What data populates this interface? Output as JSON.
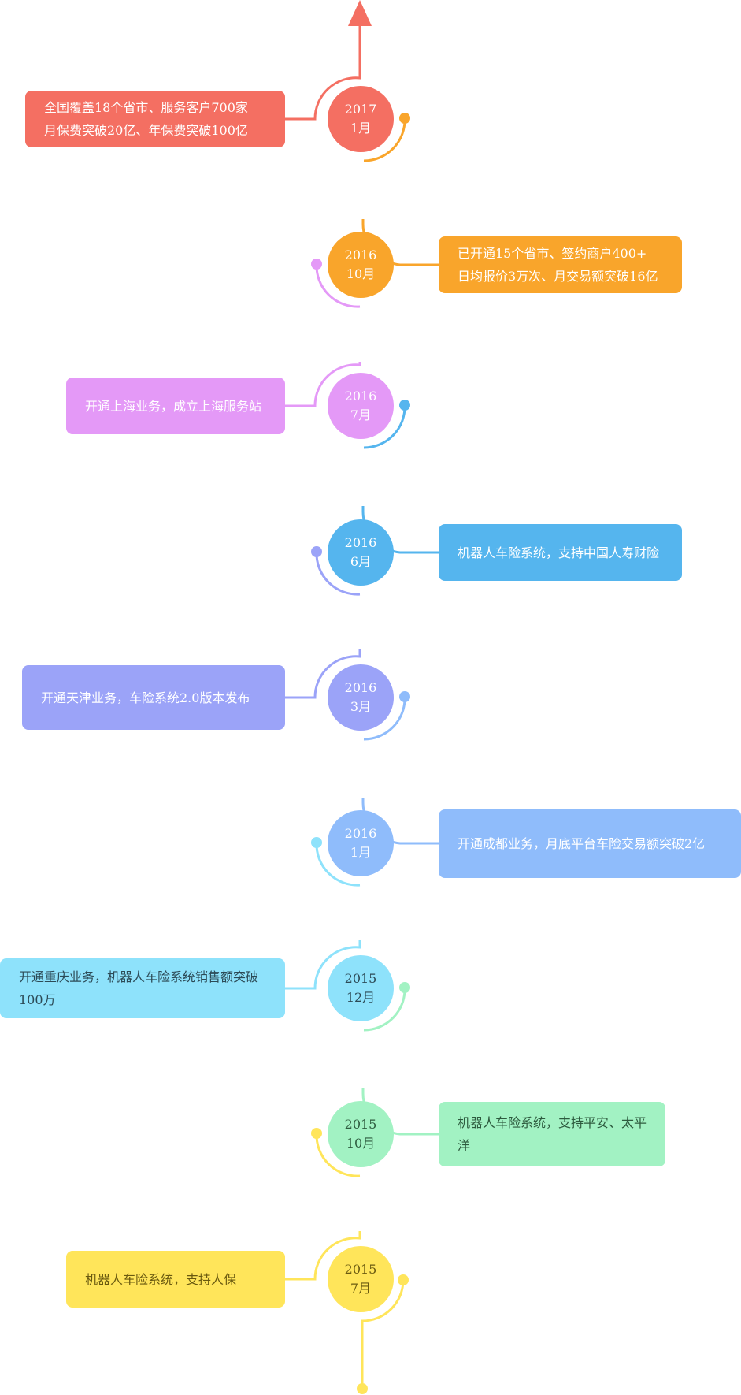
{
  "events": [
    {
      "year": "2017",
      "month": "1月",
      "text": "全国覆盖18个省市、服务客户700家\n月保费突破20亿、年保费突破100亿",
      "color": "#F46F62",
      "text_color": "#ffffff",
      "side": "left"
    },
    {
      "year": "2016",
      "month": "10月",
      "text": "已开通15个省市、签约商户400+\n日均报价3万次、月交易额突破16亿",
      "color": "#F9A52B",
      "text_color": "#ffffff",
      "side": "right"
    },
    {
      "year": "2016",
      "month": "7月",
      "text": "开通上海业务，成立上海服务站",
      "color": "#E499F7",
      "text_color": "#ffffff",
      "side": "left"
    },
    {
      "year": "2016",
      "month": "6月",
      "text": "机器人车险系统，支持中国人寿财险",
      "color": "#55B5EE",
      "text_color": "#ffffff",
      "side": "right"
    },
    {
      "year": "2016",
      "month": "3月",
      "text": "开通天津业务，车险系统2.0版本发布",
      "color": "#9BA3F8",
      "text_color": "#ffffff",
      "side": "left"
    },
    {
      "year": "2016",
      "month": "1月",
      "text": "开通成都业务，月底平台车险交易额突破2亿",
      "color": "#8FBCFB",
      "text_color": "#ffffff",
      "side": "right"
    },
    {
      "year": "2015",
      "month": "12月",
      "text": "开通重庆业务，机器人车险系统销售额突破100万",
      "color": "#8EE2FB",
      "text_color": "#2c4a56",
      "side": "left"
    },
    {
      "year": "2015",
      "month": "10月",
      "text": "机器人车险系统，支持平安、太平洋",
      "color": "#A2F2C3",
      "text_color": "#2d5a3e",
      "side": "right"
    },
    {
      "year": "2015",
      "month": "7月",
      "text": "机器人车险系统，支持人保",
      "color": "#FFE55A",
      "text_color": "#6a5a10",
      "side": "left"
    }
  ]
}
